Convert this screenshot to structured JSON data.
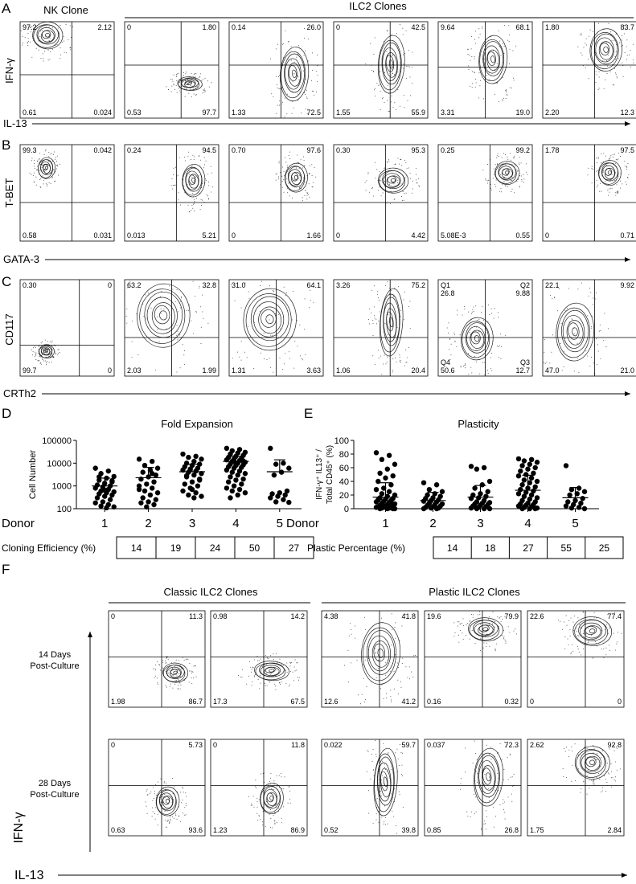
{
  "panel_a": {
    "label": "A",
    "headers": [
      "NK Clone",
      "ILC2 Clones"
    ],
    "y_label": "IFN-γ",
    "x_label": "IL-13",
    "plots": [
      {
        "quadrants": [
          "97.2",
          "2.12",
          "0.61",
          "0.024"
        ]
      },
      {
        "quadrants": [
          "0",
          "1.80",
          "0.53",
          "97.7"
        ]
      },
      {
        "quadrants": [
          "0.14",
          "26.0",
          "1.33",
          "72.5"
        ]
      },
      {
        "quadrants": [
          "0",
          "42.5",
          "1.55",
          "55.9"
        ]
      },
      {
        "quadrants": [
          "9.64",
          "68.1",
          "3.31",
          "19.0"
        ]
      },
      {
        "quadrants": [
          "1.80",
          "83.7",
          "2.20",
          "12.3"
        ]
      }
    ]
  },
  "panel_b": {
    "label": "B",
    "y_label": "T-BET",
    "x_label": "GATA-3",
    "plots": [
      {
        "quadrants": [
          "99.3",
          "0.042",
          "0.58",
          "0.031"
        ]
      },
      {
        "quadrants": [
          "0.24",
          "94.5",
          "0.013",
          "5.21"
        ]
      },
      {
        "quadrants": [
          "0.70",
          "97.6",
          "0",
          "1.66"
        ]
      },
      {
        "quadrants": [
          "0.30",
          "95.3",
          "0",
          "4.42"
        ]
      },
      {
        "quadrants": [
          "0.25",
          "99.2",
          "5.08E-3",
          "0.55"
        ]
      },
      {
        "quadrants": [
          "1.78",
          "97.5",
          "0",
          "0.71"
        ]
      }
    ]
  },
  "panel_c": {
    "label": "C",
    "y_label": "CD117",
    "x_label": "CRTh2",
    "plots": [
      {
        "quadrants": [
          "0.30",
          "0",
          "99.7",
          "0"
        ]
      },
      {
        "quadrants": [
          "63.2",
          "32.8",
          "2.03",
          "1.99"
        ]
      },
      {
        "quadrants": [
          "31.0",
          "64.1",
          "1.31",
          "3.63"
        ]
      },
      {
        "quadrants": [
          "3.26",
          "75.2",
          "1.06",
          "20.4"
        ]
      },
      {
        "quadrants": [
          "26.8",
          "9.88",
          "50.6",
          "12.7"
        ],
        "quadrant_names": [
          "Q1",
          "Q2",
          "Q4",
          "Q3"
        ]
      },
      {
        "quadrants": [
          "22.1",
          "9.92",
          "47.0",
          "21.0"
        ]
      }
    ]
  },
  "chart_data": [
    {
      "type": "dot_plot",
      "label": "D",
      "title": "Fold Expansion",
      "y_label": "Cell Number",
      "x_label": "Donor",
      "log_scale": true,
      "ylim": [
        100,
        100000
      ],
      "yticks": [
        100,
        1000,
        10000,
        100000
      ],
      "categories": [
        "1",
        "2",
        "3",
        "4",
        "5"
      ],
      "color": "#000000",
      "values": [
        [
          6000,
          4500,
          3500,
          2600,
          2200,
          1800,
          1500,
          1300,
          1100,
          1000,
          900,
          800,
          700,
          600,
          550,
          500,
          450,
          400,
          350,
          300,
          250,
          200,
          180,
          150,
          130,
          120,
          110,
          2500,
          1700,
          650
        ],
        [
          15000,
          12000,
          8000,
          6000,
          5000,
          4000,
          3000,
          2500,
          2000,
          1500,
          1200,
          1000,
          800,
          600,
          500,
          400,
          300,
          250,
          200,
          180,
          150,
          120,
          700,
          3500
        ],
        [
          25000,
          20000,
          18000,
          15000,
          12000,
          10000,
          9000,
          8000,
          7000,
          6000,
          5500,
          5000,
          4500,
          4000,
          3500,
          3000,
          2500,
          2000,
          1500,
          1200,
          1000,
          800,
          600,
          500,
          400,
          350,
          300,
          2800,
          1800,
          700
        ],
        [
          45000,
          40000,
          35000,
          30000,
          28000,
          25000,
          22000,
          20000,
          18000,
          16000,
          15000,
          14000,
          13000,
          12000,
          11000,
          10000,
          9000,
          8500,
          8000,
          7000,
          6500,
          6000,
          5000,
          4500,
          4000,
          3500,
          3000,
          2500,
          2000,
          1800,
          1500,
          1200,
          1000,
          800,
          700,
          600,
          500,
          400,
          300,
          12500,
          9500
        ],
        [
          45000,
          10000,
          9000,
          6000,
          4000,
          3000,
          600,
          500,
          450,
          400,
          350,
          300,
          250,
          200,
          190
        ]
      ],
      "mean": [
        1000,
        2300,
        4200,
        12000,
        4200
      ],
      "error_upper": [
        2200,
        6500,
        9000,
        20000,
        14000
      ],
      "table": {
        "label": "Cloning Efficiency (%)",
        "values": [
          14,
          19,
          24,
          50,
          27
        ]
      }
    },
    {
      "type": "dot_plot",
      "label": "E",
      "title": "Plasticity",
      "y_label": [
        "IFN-γ⁺ IL13⁺ /",
        "Total CD45⁺ (%)"
      ],
      "x_label": "Donor",
      "log_scale": false,
      "ylim": [
        0,
        100
      ],
      "yticks": [
        0,
        20,
        40,
        60,
        80,
        100
      ],
      "categories": [
        "1",
        "2",
        "3",
        "4",
        "5"
      ],
      "color": "#000000",
      "values": [
        [
          82,
          78,
          72,
          65,
          58,
          52,
          48,
          45,
          40,
          35,
          30,
          28,
          25,
          22,
          20,
          18,
          16,
          15,
          14,
          13,
          12,
          11,
          10,
          9,
          8,
          7,
          6,
          5,
          5,
          4,
          3,
          3,
          2,
          2,
          1,
          1,
          0,
          0,
          0,
          0
        ],
        [
          38,
          35,
          28,
          25,
          22,
          20,
          18,
          16,
          15,
          13,
          12,
          11,
          10,
          8,
          7,
          6,
          5,
          4,
          3,
          2,
          1,
          1,
          0,
          0
        ],
        [
          62,
          60,
          58,
          40,
          35,
          30,
          25,
          22,
          20,
          18,
          16,
          15,
          12,
          10,
          9,
          8,
          7,
          6,
          5,
          4,
          3,
          2,
          1,
          0,
          0,
          0
        ],
        [
          73,
          72,
          70,
          68,
          65,
          63,
          60,
          58,
          55,
          52,
          50,
          48,
          45,
          42,
          40,
          38,
          35,
          32,
          30,
          28,
          26,
          24,
          22,
          20,
          18,
          16,
          14,
          12,
          10,
          8,
          7,
          6,
          5,
          4,
          3,
          2,
          1,
          0,
          0,
          0
        ],
        [
          63,
          30,
          28,
          25,
          22,
          20,
          15,
          12,
          10,
          8,
          6,
          4,
          2,
          1,
          0
        ]
      ],
      "mean": [
        17,
        12,
        17,
        27,
        16
      ],
      "error_upper": [
        38,
        24,
        34,
        49,
        31
      ],
      "table": {
        "label": "Plastic Percentage (%)",
        "values": [
          14,
          18,
          27,
          55,
          25
        ]
      }
    }
  ],
  "panel_f": {
    "label": "F",
    "headers": [
      "Classic ILC2 Clones",
      "Plastic ILC2 Clones"
    ],
    "y_label": "IFN-γ",
    "x_label": "IL-13",
    "rows": [
      {
        "label": [
          "14 Days",
          "Post-Culture"
        ],
        "plots": [
          {
            "quadrants": [
              "0",
              "11.3",
              "1.98",
              "86.7"
            ]
          },
          {
            "quadrants": [
              "0.98",
              "14.2",
              "17.3",
              "67.5"
            ]
          },
          {
            "quadrants": [
              "4.38",
              "41.8",
              "12.6",
              "41.2"
            ]
          },
          {
            "quadrants": [
              "19.6",
              "79.9",
              "0.16",
              "0.32"
            ]
          },
          {
            "quadrants": [
              "22.6",
              "77.4",
              "0",
              "0"
            ]
          }
        ]
      },
      {
        "label": [
          "28 Days",
          "Post-Culture"
        ],
        "plots": [
          {
            "quadrants": [
              "0",
              "5.73",
              "0.63",
              "93.6"
            ]
          },
          {
            "quadrants": [
              "0",
              "11.8",
              "1.23",
              "86.9"
            ]
          },
          {
            "quadrants": [
              "0.022",
              "59.7",
              "0.52",
              "39.8"
            ]
          },
          {
            "quadrants": [
              "0.037",
              "72.3",
              "0.85",
              "26.8"
            ]
          },
          {
            "quadrants": [
              "2.62",
              "92.8",
              "1.75",
              "2.84"
            ]
          }
        ]
      }
    ]
  }
}
